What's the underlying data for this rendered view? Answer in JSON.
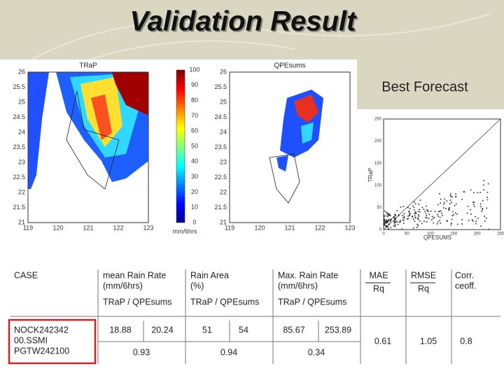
{
  "title": "Validation Result",
  "best_forecast": "Best Forecast",
  "maps": [
    {
      "title": "TRaP",
      "yticks": [
        "26",
        "25.5",
        "25",
        "24.5",
        "24",
        "23.5",
        "23",
        "22.5",
        "22",
        "21.5",
        "21"
      ],
      "xticks": [
        "119",
        "120",
        "121",
        "122",
        "123"
      ]
    },
    {
      "title": "QPEsums",
      "yticks": [
        "26",
        "25.5",
        "25",
        "24.5",
        "24",
        "23.5",
        "23",
        "22.5",
        "22",
        "21.5",
        "21"
      ],
      "xticks": [
        "119",
        "120",
        "121",
        "122",
        "123"
      ]
    }
  ],
  "colorbar": {
    "ticks": [
      "100",
      "90",
      "80",
      "70",
      "60",
      "50",
      "40",
      "30",
      "20",
      "10",
      "0"
    ],
    "unit": "mm/6hrs"
  },
  "scatter": {
    "xlabel": "QPESUMS",
    "ylabel": "TRaP",
    "xticks": [
      "0",
      "50",
      "100",
      "150",
      "200",
      "250"
    ],
    "yticks": [
      "250",
      "200",
      "150",
      "100",
      "50",
      "0"
    ]
  },
  "table": {
    "header": [
      [
        "CASE"
      ],
      [
        "mean Rain Rate",
        "(mm/6hrs)"
      ],
      [
        "Rain Area",
        "(%)"
      ],
      [
        "Max. Rain Rate",
        "(mm/6hrs)"
      ],
      [
        "MAE",
        "Rq"
      ],
      [
        "RMSE",
        "Rq"
      ],
      [
        "Corr.",
        "ceoff."
      ]
    ],
    "subheader": [
      "TRaP / QPEsums",
      "TRaP / QPEsums",
      "TRaP / QPEsums"
    ],
    "case": [
      "NOCK242342",
      "00.SSMI",
      "PGTW242100"
    ],
    "row1": [
      "18.88",
      "20.24",
      "51",
      "54",
      "85.67",
      "253.89"
    ],
    "errors": [
      "0.61",
      "1.05",
      "0.8"
    ],
    "row2": [
      "0.93",
      "0.94",
      "0.34"
    ]
  }
}
